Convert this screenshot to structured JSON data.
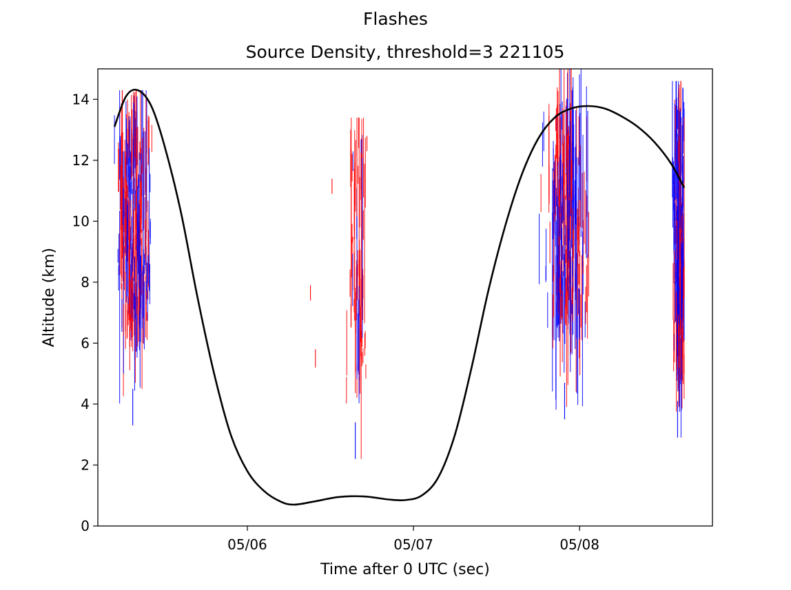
{
  "figure": {
    "suptitle": "Flashes"
  },
  "chart_data": {
    "type": "scatter",
    "title": "Source Density, threshold=3 221105",
    "xlabel": "Time after 0 UTC (sec)",
    "ylabel": "Altitude (km)",
    "ylim": [
      0,
      15
    ],
    "xlim_days": [
      5.1,
      8.8
    ],
    "x_ticks": [
      {
        "label": "05/06",
        "day": 6.0
      },
      {
        "label": "05/07",
        "day": 7.0
      },
      {
        "label": "05/08",
        "day": 8.0
      }
    ],
    "y_ticks": [
      0,
      2,
      4,
      6,
      8,
      10,
      12,
      14
    ],
    "grid": false,
    "colors": {
      "series_a": "#ff0000",
      "series_b": "#0000ff",
      "curve": "#000000"
    },
    "source_clusters": [
      {
        "name": "cluster-1",
        "x_start": 5.2,
        "x_end": 5.47,
        "center_x": 5.32,
        "y_min": 3.3,
        "y_max": 14.3,
        "core_low": 6.5,
        "core_high": 13.3,
        "dominant": "mixed",
        "density": 260
      },
      {
        "name": "cluster-2",
        "x_start": 6.58,
        "x_end": 6.76,
        "center_x": 6.66,
        "y_min": 2.2,
        "y_max": 13.4,
        "core_low": 4.0,
        "core_high": 12.8,
        "dominant": "red",
        "density": 70
      },
      {
        "name": "cluster-3",
        "x_start": 7.73,
        "x_end": 8.08,
        "center_x": 7.92,
        "y_min": 3.5,
        "y_max": 15.0,
        "core_low": 6.5,
        "core_high": 13.3,
        "dominant": "mixed",
        "density": 280
      },
      {
        "name": "cluster-4",
        "x_start": 8.52,
        "x_end": 8.63,
        "center_x": 8.6,
        "y_min": 2.9,
        "y_max": 14.6,
        "core_low": 4.5,
        "core_high": 13.5,
        "dominant": "blue",
        "density": 170
      }
    ],
    "isolated_sources": [
      {
        "x": 6.38,
        "y_low": 7.4,
        "y_high": 7.9,
        "color": "red"
      },
      {
        "x": 6.41,
        "y_low": 5.2,
        "y_high": 5.8,
        "color": "red"
      },
      {
        "x": 6.51,
        "y_low": 10.9,
        "y_high": 11.4,
        "color": "red"
      },
      {
        "x": 6.72,
        "y_low": 12.3,
        "y_high": 12.8,
        "color": "red"
      }
    ],
    "curve": {
      "color": "#000000",
      "points": [
        [
          5.2,
          13.1
        ],
        [
          5.27,
          14.1
        ],
        [
          5.34,
          14.3
        ],
        [
          5.42,
          13.8
        ],
        [
          5.5,
          12.5
        ],
        [
          5.6,
          10.3
        ],
        [
          5.7,
          7.5
        ],
        [
          5.8,
          5.0
        ],
        [
          5.9,
          3.0
        ],
        [
          6.0,
          1.8
        ],
        [
          6.1,
          1.15
        ],
        [
          6.2,
          0.8
        ],
        [
          6.28,
          0.7
        ],
        [
          6.4,
          0.8
        ],
        [
          6.55,
          0.95
        ],
        [
          6.7,
          0.97
        ],
        [
          6.85,
          0.87
        ],
        [
          6.95,
          0.85
        ],
        [
          7.05,
          1.0
        ],
        [
          7.15,
          1.6
        ],
        [
          7.25,
          3.0
        ],
        [
          7.35,
          5.2
        ],
        [
          7.45,
          7.7
        ],
        [
          7.55,
          9.8
        ],
        [
          7.65,
          11.5
        ],
        [
          7.75,
          12.7
        ],
        [
          7.85,
          13.4
        ],
        [
          7.95,
          13.7
        ],
        [
          8.05,
          13.78
        ],
        [
          8.15,
          13.7
        ],
        [
          8.25,
          13.45
        ],
        [
          8.35,
          13.1
        ],
        [
          8.45,
          12.6
        ],
        [
          8.55,
          11.9
        ],
        [
          8.63,
          11.1
        ]
      ]
    }
  }
}
